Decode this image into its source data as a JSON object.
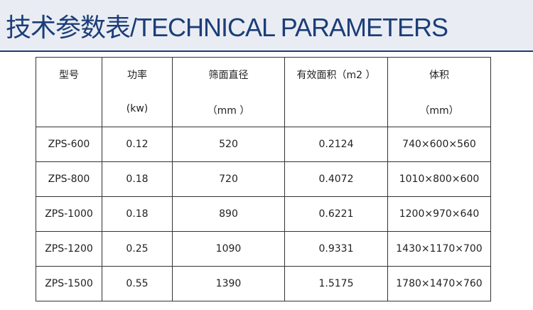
{
  "header": {
    "title": "技术参数表/TECHNICAL PARAMETERS"
  },
  "table": {
    "header": [
      [
        "型号"
      ],
      [
        "功率",
        "(kw)"
      ],
      [
        "筛面直径",
        "（mm ）"
      ],
      [
        "有效面积（m2 ）"
      ],
      [
        "体积",
        "（mm）"
      ]
    ],
    "rows": [
      [
        "ZPS-600",
        "0.12",
        "520",
        "0.2124",
        "740×600×560"
      ],
      [
        "ZPS-800",
        "0.18",
        "720",
        "0.4072",
        "1010×800×600"
      ],
      [
        "ZPS-1000",
        "0.18",
        "890",
        "0.6221",
        "1200×970×640"
      ],
      [
        "ZPS-1200",
        "0.25",
        "1090",
        "0.9331",
        "1430×1170×700"
      ],
      [
        "ZPS-1500",
        "0.55",
        "1390",
        "1.5175",
        "1780×1470×760"
      ]
    ]
  }
}
